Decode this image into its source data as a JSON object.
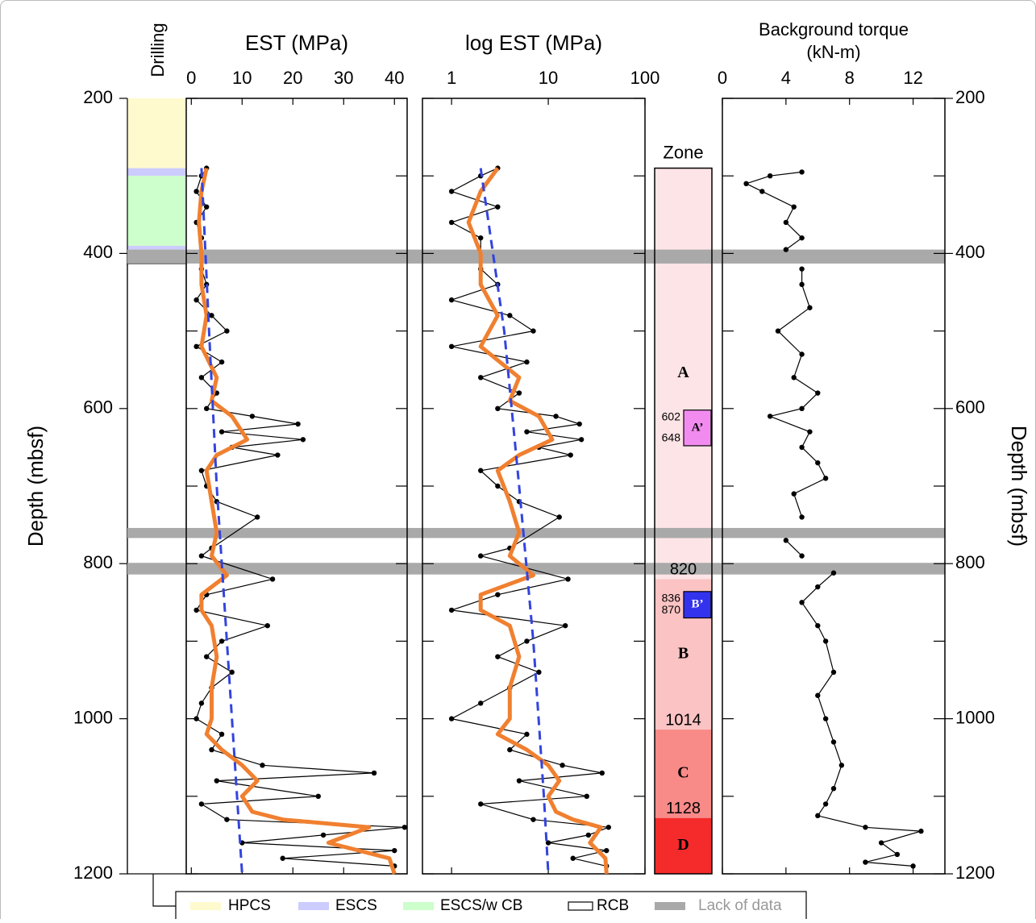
{
  "chart_data": [
    {
      "type": "line",
      "title": "EST (MPa)",
      "ylabel": "Depth (mbsf)",
      "inverted_y": true,
      "xlim": [
        -1,
        42.5
      ],
      "xticks": [
        0,
        10,
        20,
        30,
        40
      ],
      "ylim": [
        200,
        1200
      ],
      "yticks": [
        200,
        400,
        600,
        800,
        1000,
        1200
      ],
      "minor_yticks": [
        300,
        500,
        700,
        900,
        1100
      ],
      "series": [
        {
          "style": "points",
          "color": "#000000",
          "depths": [
            290,
            300,
            320,
            340,
            360,
            380,
            420,
            440,
            460,
            480,
            500,
            520,
            540,
            560,
            580,
            600,
            610,
            620,
            630,
            640,
            650,
            660,
            680,
            700,
            720,
            740,
            780,
            790,
            820,
            840,
            860,
            880,
            900,
            920,
            940,
            960,
            980,
            1000,
            1020,
            1040,
            1060,
            1070,
            1080,
            1100,
            1110,
            1130,
            1140,
            1150,
            1160,
            1170,
            1180,
            1190
          ],
          "values": [
            3,
            2,
            1,
            3,
            1,
            2,
            2,
            3,
            1,
            4,
            7,
            1,
            6,
            2,
            5,
            3,
            12,
            21,
            6,
            22,
            8,
            17,
            2,
            3,
            5,
            13,
            4,
            2,
            16,
            3,
            1,
            15,
            6,
            3,
            8,
            4,
            2,
            1,
            6,
            4,
            14,
            36,
            5,
            25,
            2,
            7,
            42,
            26,
            10,
            40,
            18,
            40
          ]
        },
        {
          "style": "line",
          "color": "#f08030",
          "depths": [
            290,
            320,
            360,
            400,
            440,
            480,
            520,
            560,
            590,
            610,
            640,
            660,
            680,
            720,
            760,
            790,
            815,
            840,
            860,
            880,
            920,
            960,
            1000,
            1020,
            1040,
            1060,
            1080,
            1100,
            1120,
            1130,
            1140,
            1160,
            1180,
            1200
          ],
          "values": [
            3,
            2,
            1.5,
            2,
            2,
            3,
            2,
            5,
            4,
            8,
            11,
            5,
            3,
            4,
            5,
            4,
            7,
            2,
            2,
            4,
            5,
            4,
            4,
            3,
            6,
            10,
            13,
            10,
            12,
            18,
            35,
            27,
            39,
            40
          ]
        },
        {
          "style": "dashed",
          "color": "#3344dd",
          "depths": [
            290,
            500,
            700,
            900,
            1100,
            1200
          ],
          "values": [
            2,
            3.5,
            5,
            7,
            9,
            10
          ]
        }
      ]
    },
    {
      "type": "line",
      "title": "log EST (MPa)",
      "log_x": true,
      "inverted_y": true,
      "xlim": [
        0.5,
        100
      ],
      "xticks": [
        1,
        10,
        100
      ],
      "ylim": [
        200,
        1200
      ],
      "yticks": [
        200,
        400,
        600,
        800,
        1000,
        1200
      ],
      "minor_yticks": [
        300,
        500,
        700,
        900,
        1100
      ],
      "series": [
        {
          "style": "points",
          "color": "#000000",
          "depths": [
            290,
            300,
            320,
            340,
            360,
            380,
            420,
            440,
            460,
            480,
            500,
            520,
            540,
            560,
            580,
            600,
            610,
            620,
            630,
            640,
            650,
            660,
            680,
            700,
            720,
            740,
            780,
            790,
            820,
            840,
            860,
            880,
            900,
            920,
            940,
            960,
            980,
            1000,
            1020,
            1040,
            1060,
            1070,
            1080,
            1100,
            1110,
            1130,
            1140,
            1150,
            1160,
            1170,
            1180,
            1190
          ],
          "values": [
            3,
            2,
            1,
            3,
            1,
            2,
            2,
            3,
            1,
            4,
            7,
            1,
            6,
            2,
            5,
            3,
            12,
            21,
            6,
            22,
            8,
            17,
            2,
            3,
            5,
            13,
            4,
            2,
            16,
            3,
            1,
            15,
            6,
            3,
            8,
            4,
            2,
            1,
            6,
            4,
            14,
            36,
            5,
            25,
            2,
            7,
            42,
            26,
            10,
            40,
            18,
            40
          ]
        },
        {
          "style": "line",
          "color": "#f08030",
          "depths": [
            290,
            320,
            360,
            400,
            440,
            480,
            520,
            560,
            590,
            610,
            640,
            660,
            680,
            720,
            760,
            790,
            815,
            840,
            860,
            880,
            920,
            960,
            1000,
            1020,
            1040,
            1060,
            1080,
            1100,
            1120,
            1130,
            1140,
            1160,
            1180,
            1200
          ],
          "values": [
            3,
            2,
            1.5,
            2,
            2,
            3,
            2,
            5,
            4,
            8,
            11,
            5,
            3,
            4,
            5,
            4,
            7,
            2,
            2,
            4,
            5,
            4,
            4,
            3,
            6,
            10,
            13,
            10,
            12,
            18,
            35,
            27,
            39,
            40
          ]
        },
        {
          "style": "dashed",
          "color": "#3344dd",
          "depths": [
            290,
            500,
            700,
            900,
            1100,
            1200
          ],
          "values": [
            2,
            3.5,
            5,
            7,
            9,
            10
          ]
        }
      ]
    },
    {
      "type": "line",
      "title": "Background torque",
      "unit": "(kN-m)",
      "ylabel": "Depth (mbsf)",
      "inverted_y": true,
      "xlim": [
        0,
        14
      ],
      "xticks": [
        0,
        4,
        8,
        12
      ],
      "ylim": [
        200,
        1200
      ],
      "yticks": [
        200,
        400,
        600,
        800,
        1000,
        1200
      ],
      "minor_yticks": [
        300,
        500,
        700,
        900,
        1100
      ],
      "series": [
        {
          "style": "points",
          "color": "#000000",
          "depths": [
            295,
            300,
            310,
            320,
            340,
            360,
            380,
            395,
            null,
            420,
            440,
            470,
            500,
            530,
            560,
            580,
            600,
            610,
            630,
            650,
            670,
            690,
            710,
            740,
            null,
            770,
            790,
            null,
            812,
            830,
            850,
            880,
            900,
            940,
            970,
            1000,
            1030,
            1060,
            1090,
            1110,
            1125,
            1140,
            1145,
            1160,
            1175,
            1185,
            1190
          ],
          "values": [
            5,
            3,
            1.5,
            2.5,
            4.5,
            4,
            5,
            4,
            null,
            5,
            5,
            5.5,
            3.5,
            5,
            4.5,
            6,
            5,
            3,
            5.5,
            5,
            6,
            6.5,
            4.5,
            5,
            null,
            4,
            5,
            null,
            7,
            6,
            5,
            6,
            6.5,
            7,
            6,
            6.5,
            7,
            7.5,
            7,
            6.5,
            6,
            9,
            12.5,
            10,
            11,
            9,
            12
          ]
        }
      ]
    }
  ],
  "drilling": {
    "label": "Drilling"
  },
  "zones": {
    "label": "Zone",
    "zones": [
      {
        "name": "A",
        "top": 290,
        "bottom": 820,
        "color": "#fde4e6",
        "label_top": false
      },
      {
        "name": "B",
        "top": 820,
        "bottom": 1014,
        "color": "#fbc3c3",
        "label_top": true
      },
      {
        "name": "C",
        "top": 1014,
        "bottom": 1128,
        "color": "#f88a88",
        "label_top": true
      },
      {
        "name": "D",
        "top": 1128,
        "bottom": 1200,
        "color": "#f52a2a",
        "label_top": true
      }
    ],
    "subzones": [
      {
        "name": "A’",
        "top": 602,
        "bottom": 648,
        "color": "#f28bf0",
        "text_color": "#000000"
      },
      {
        "name": "B’",
        "top": 836,
        "bottom": 870,
        "color": "#3333ee",
        "text_color": "#ffffff"
      }
    ]
  },
  "legend": [
    {
      "name": "HPCS",
      "color": "#fffacd",
      "intervals": [
        [
          200,
          413
        ]
      ]
    },
    {
      "name": "ESCS",
      "color": "#ccccff",
      "intervals": [
        [
          290,
          300
        ],
        [
          390,
          395
        ]
      ]
    },
    {
      "name": "ESCS/w CB",
      "color": "#ccffcc",
      "intervals": [
        [
          300,
          390
        ]
      ]
    },
    {
      "name": "RCB",
      "color": "#ffffff",
      "outline": true,
      "intervals": [
        [
          413,
          1200
        ]
      ]
    },
    {
      "name": "Lack of data",
      "color": "#a9a9a9",
      "label_color": "#999999",
      "extent": "full",
      "intervals": [
        [
          395,
          413
        ],
        [
          754,
          767
        ],
        [
          799,
          814
        ]
      ]
    }
  ]
}
